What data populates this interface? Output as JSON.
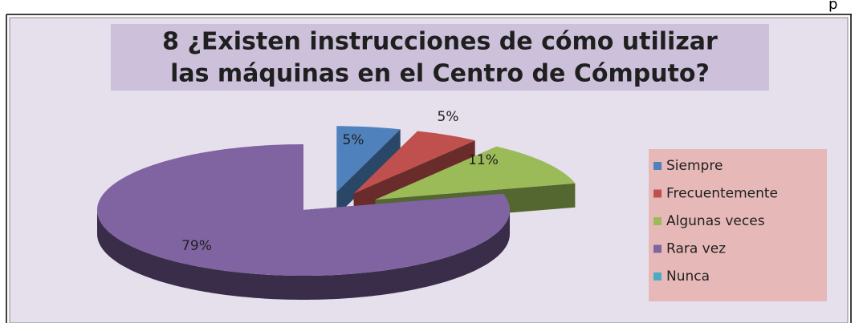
{
  "page_fragment": "p",
  "chart_data": {
    "type": "pie",
    "title": [
      "8 ¿Existen instrucciones de cómo utilizar",
      "las máquinas en el Centro de Cómputo?"
    ],
    "categories": [
      "Siempre",
      "Frecuentemente",
      "Algunas veces",
      "Rara vez",
      "Nunca"
    ],
    "values": [
      5,
      5,
      11,
      79,
      0
    ],
    "value_labels": [
      "5%",
      "5%",
      "11%",
      "79%",
      null
    ],
    "colors": [
      "#4f81bd",
      "#c0504d",
      "#9bbb59",
      "#8064a2",
      "#4bacc6"
    ],
    "exploded": [
      true,
      true,
      true,
      false,
      false
    ],
    "legend": "right"
  }
}
